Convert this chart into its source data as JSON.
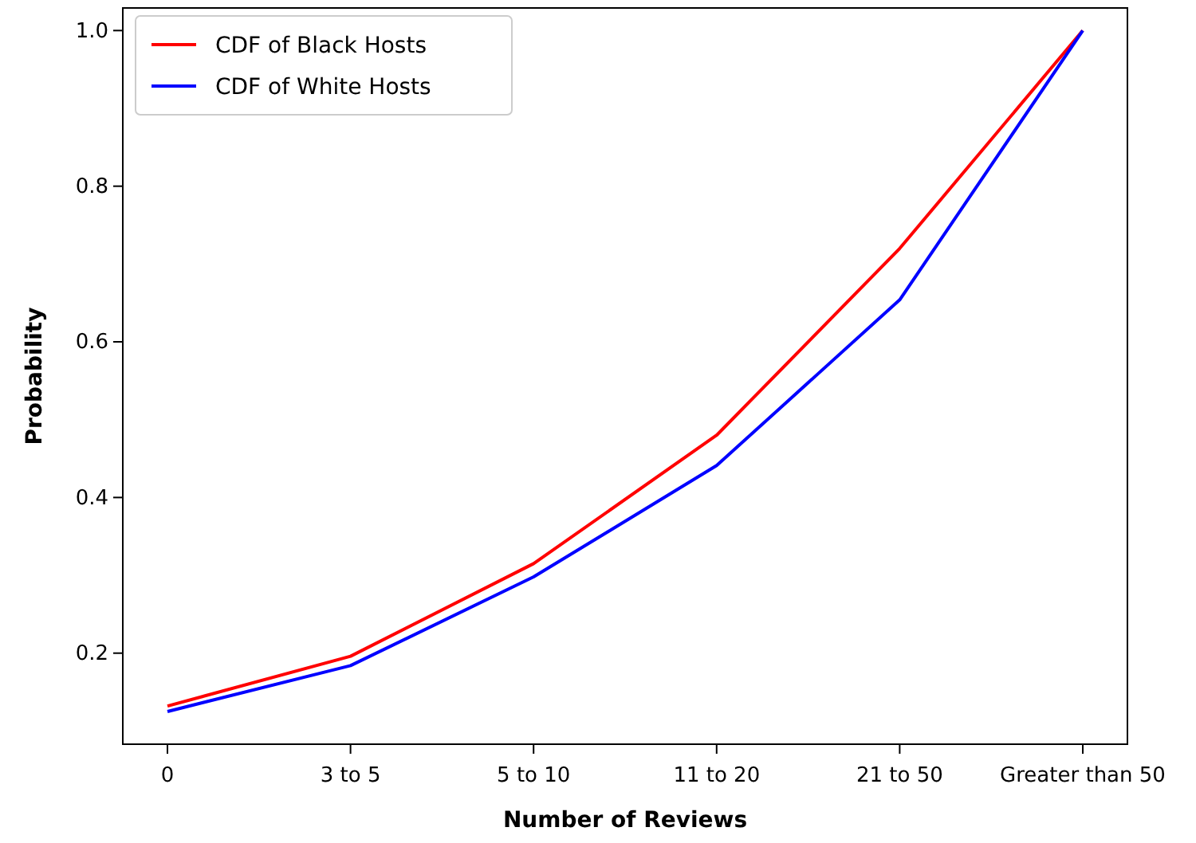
{
  "chart_data": {
    "type": "line",
    "xlabel": "Number of Reviews",
    "ylabel": "Probability",
    "categories": [
      "0",
      "3 to 5",
      "5 to 10",
      "11 to 20",
      "21 to 50",
      "Greater than 50"
    ],
    "series": [
      {
        "name": "CDF of Black Hosts",
        "color": "#ff0000",
        "values": [
          0.132,
          0.196,
          0.315,
          0.48,
          0.72,
          1.0
        ]
      },
      {
        "name": "CDF of White Hosts",
        "color": "#0000ff",
        "values": [
          0.125,
          0.184,
          0.298,
          0.441,
          0.654,
          1.0
        ]
      }
    ],
    "ylim": [
      0.083,
      1.029
    ],
    "yticks": [
      {
        "value": 0.2,
        "label": "0.2"
      },
      {
        "value": 0.4,
        "label": "0.4"
      },
      {
        "value": 0.6,
        "label": "0.6"
      },
      {
        "value": 0.8,
        "label": "0.8"
      },
      {
        "value": 1.0,
        "label": "1.0"
      }
    ],
    "grid": false,
    "legend": "top left"
  }
}
